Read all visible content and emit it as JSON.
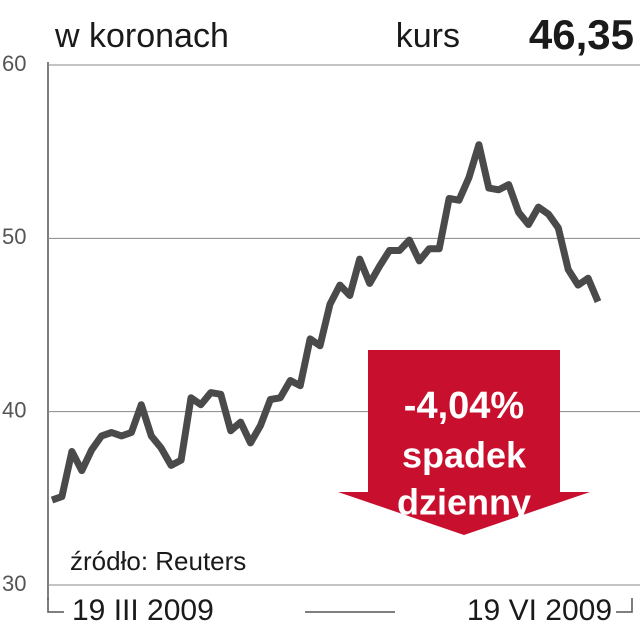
{
  "chart_data": {
    "type": "line",
    "title": "w koronach",
    "price_label": "kurs",
    "price_value": "46,35",
    "source": "źródło: Reuters",
    "annotations": [
      "-4,04%",
      "spadek",
      "dzienny"
    ],
    "categories": [
      "19 III 2009",
      null,
      null,
      null,
      null,
      null,
      null,
      null,
      null,
      null,
      null,
      null,
      null,
      null,
      null,
      null,
      null,
      null,
      null,
      null,
      null,
      null,
      null,
      null,
      null,
      null,
      null,
      null,
      null,
      null,
      null,
      null,
      null,
      null,
      null,
      null,
      null,
      null,
      null,
      null,
      null,
      null,
      null,
      null,
      null,
      null,
      null,
      null,
      null,
      null,
      null,
      null,
      null,
      null,
      null,
      "19 VI 2009"
    ],
    "values": [
      34.9,
      35.1,
      37.7,
      36.6,
      37.8,
      38.6,
      38.8,
      38.6,
      38.8,
      40.4,
      38.6,
      37.9,
      36.9,
      37.2,
      40.8,
      40.4,
      41.1,
      41.0,
      38.9,
      39.4,
      38.2,
      39.2,
      40.7,
      40.8,
      41.8,
      41.5,
      44.2,
      43.8,
      46.2,
      47.3,
      46.7,
      48.8,
      47.4,
      48.4,
      49.3,
      49.3,
      49.9,
      48.7,
      49.4,
      49.4,
      52.3,
      52.2,
      53.5,
      55.4,
      52.9,
      52.8,
      53.1,
      51.5,
      50.8,
      51.8,
      51.4,
      50.6,
      48.2,
      47.3,
      47.7,
      46.35
    ],
    "color": "#4a4a4a",
    "ylim": [
      30,
      60
    ],
    "yticks": [
      30,
      40,
      50,
      60
    ],
    "grid": true
  }
}
